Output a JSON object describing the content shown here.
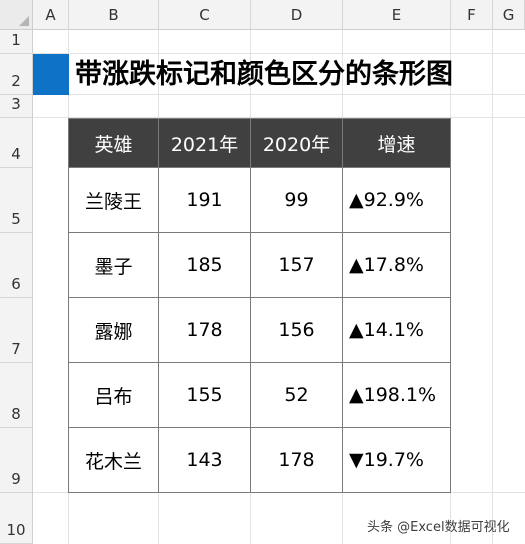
{
  "sheet": {
    "columns": [
      "A",
      "B",
      "C",
      "D",
      "E",
      "F",
      "G"
    ],
    "rows": [
      "1",
      "2",
      "3",
      "4",
      "5",
      "6",
      "7",
      "8",
      "9",
      "10"
    ]
  },
  "title": "带涨跌标记和颜色区分的条形图",
  "table": {
    "headers": [
      "英雄",
      "2021年",
      "2020年",
      "增速"
    ],
    "rows": [
      {
        "hero": "兰陵王",
        "y2021": "191",
        "y2020": "99",
        "growth": "▲92.9%",
        "trend": "up"
      },
      {
        "hero": "墨子",
        "y2021": "185",
        "y2020": "157",
        "growth": "▲17.8%",
        "trend": "up"
      },
      {
        "hero": "露娜",
        "y2021": "178",
        "y2020": "156",
        "growth": "▲14.1%",
        "trend": "up"
      },
      {
        "hero": "吕布",
        "y2021": "155",
        "y2020": "52",
        "growth": "▲198.1%",
        "trend": "up"
      },
      {
        "hero": "花木兰",
        "y2021": "143",
        "y2020": "178",
        "growth": "▼19.7%",
        "trend": "down"
      }
    ]
  },
  "colors": {
    "up": "#e8000b",
    "down": "#0a7e78",
    "header_bg": "#404040",
    "title_accent": "#0e72c7"
  },
  "watermark": "头条 @Excel数据可视化"
}
